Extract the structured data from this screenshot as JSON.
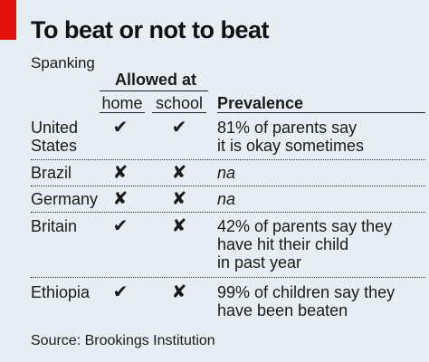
{
  "title": "To beat or not to beat",
  "subtitle": "Spanking",
  "headers": {
    "allowed_at": "Allowed at",
    "home": "home",
    "school": "school",
    "prevalence": "Prevalence"
  },
  "symbols": {
    "yes": "✔",
    "no": "✘"
  },
  "rows": [
    {
      "country_lines": [
        "United",
        "States"
      ],
      "home": "✔",
      "school": "✔",
      "prevalence_lines": [
        "81% of parents say",
        "it is okay sometimes"
      ]
    },
    {
      "country_lines": [
        "Brazil"
      ],
      "home": "✘",
      "school": "✘",
      "prevalence_lines": [
        "na"
      ]
    },
    {
      "country_lines": [
        "Germany"
      ],
      "home": "✘",
      "school": "✘",
      "prevalence_lines": [
        "na"
      ]
    },
    {
      "country_lines": [
        "Britain"
      ],
      "home": "✔",
      "school": "✘",
      "prevalence_lines": [
        "42% of parents say they",
        "have hit their child",
        "in past year"
      ]
    },
    {
      "country_lines": [
        "Ethiopia"
      ],
      "home": "✔",
      "school": "✘",
      "prevalence_lines": [
        "99% of children say they",
        "have been beaten"
      ]
    }
  ],
  "source": "Source: Brookings Institution",
  "colors": {
    "background": "#e6eef3",
    "accent_red": "#e3120b",
    "text": "#1a1a1a"
  },
  "chart_data": {
    "type": "table",
    "title": "To beat or not to beat",
    "subtitle": "Spanking",
    "columns": [
      "home",
      "school",
      "Prevalence"
    ],
    "column_group": "Allowed at",
    "rows": [
      {
        "country": "United States",
        "home": true,
        "school": true,
        "prevalence": "81% of parents say it is okay sometimes"
      },
      {
        "country": "Brazil",
        "home": false,
        "school": false,
        "prevalence": "na"
      },
      {
        "country": "Germany",
        "home": false,
        "school": false,
        "prevalence": "na"
      },
      {
        "country": "Britain",
        "home": true,
        "school": false,
        "prevalence": "42% of parents say they have hit their child in past year"
      },
      {
        "country": "Ethiopia",
        "home": true,
        "school": false,
        "prevalence": "99% of children say they have been beaten"
      }
    ],
    "source": "Source: Brookings Institution"
  }
}
